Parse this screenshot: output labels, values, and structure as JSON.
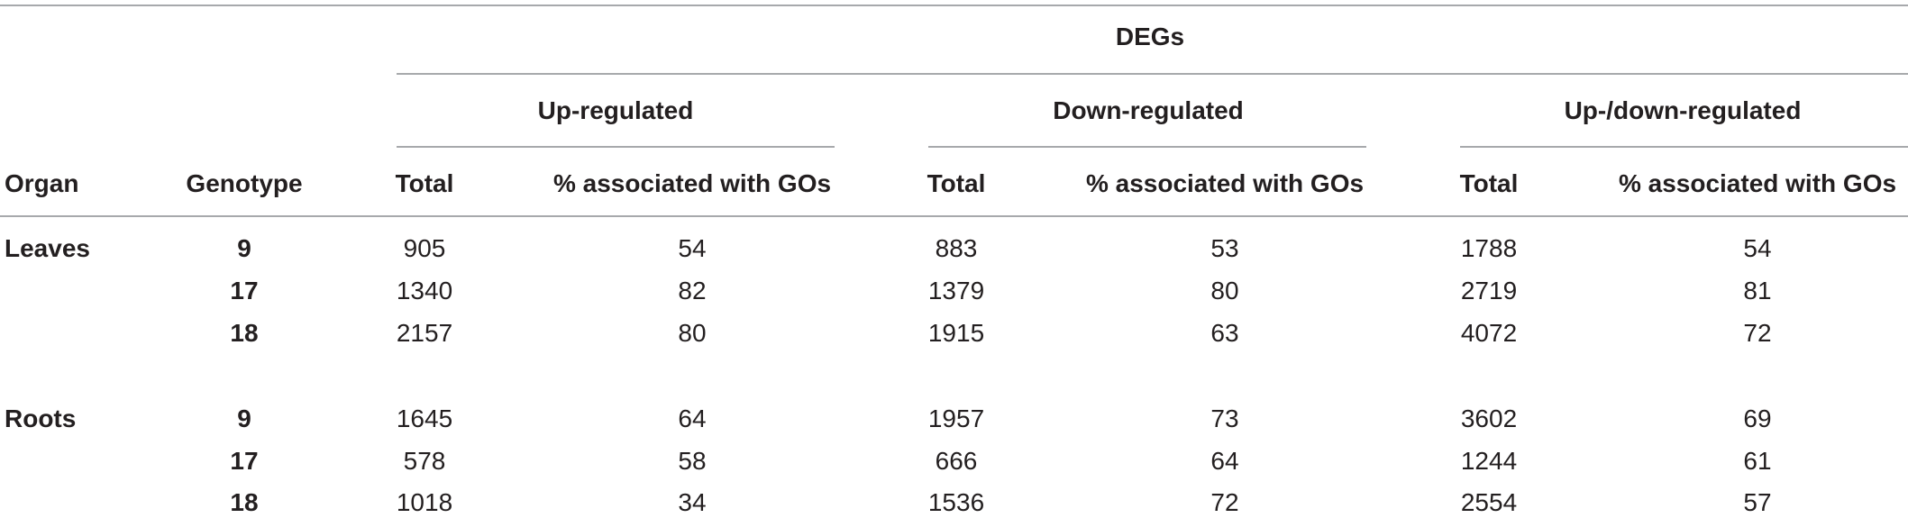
{
  "header": {
    "group_title": "DEGs",
    "organ": "Organ",
    "genotype": "Genotype",
    "groups": [
      {
        "label": "Up-regulated",
        "total": "Total",
        "pct": "% associated with GOs"
      },
      {
        "label": "Down-regulated",
        "total": "Total",
        "pct": "% associated with GOs"
      },
      {
        "label": "Up-/down-regulated",
        "total": "Total",
        "pct": "% associated with GOs"
      }
    ]
  },
  "sections": [
    {
      "organ": "Leaves",
      "rows": [
        {
          "genotype": "9",
          "values": [
            "905",
            "54",
            "883",
            "53",
            "1788",
            "54"
          ]
        },
        {
          "genotype": "17",
          "values": [
            "1340",
            "82",
            "1379",
            "80",
            "2719",
            "81"
          ]
        },
        {
          "genotype": "18",
          "values": [
            "2157",
            "80",
            "1915",
            "63",
            "4072",
            "72"
          ]
        }
      ]
    },
    {
      "organ": "Roots",
      "rows": [
        {
          "genotype": "9",
          "values": [
            "1645",
            "64",
            "1957",
            "73",
            "3602",
            "69"
          ]
        },
        {
          "genotype": "17",
          "values": [
            "578",
            "58",
            "666",
            "64",
            "1244",
            "61"
          ]
        },
        {
          "genotype": "18",
          "values": [
            "1018",
            "34",
            "1536",
            "72",
            "2554",
            "57"
          ]
        }
      ]
    }
  ]
}
